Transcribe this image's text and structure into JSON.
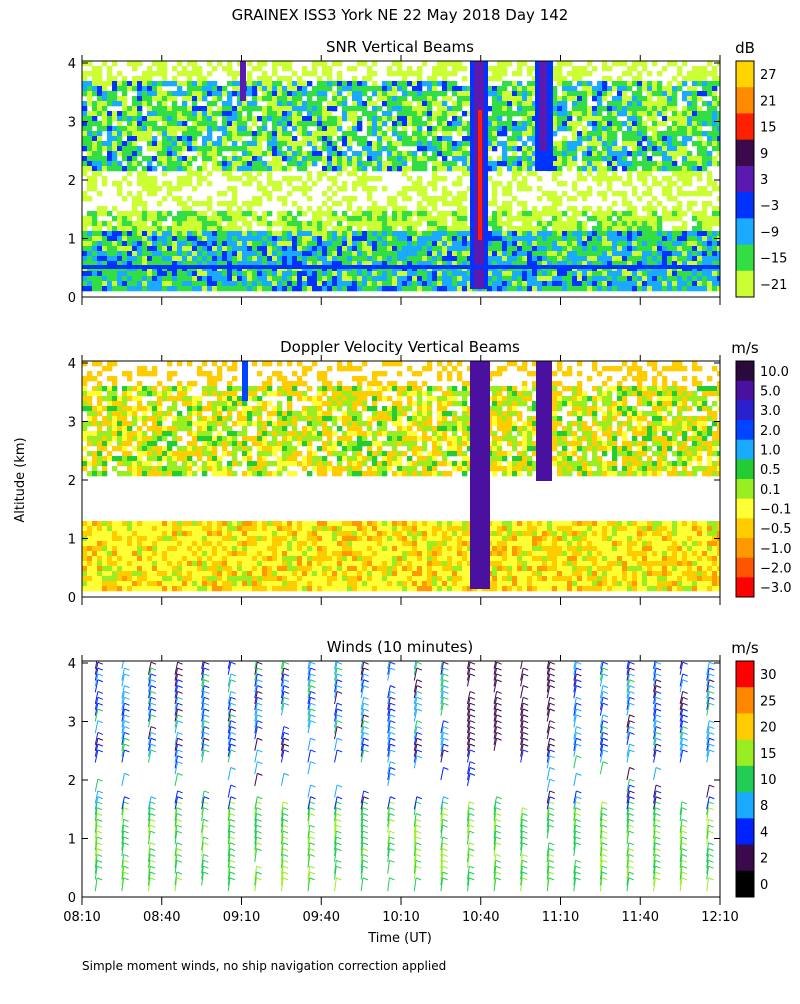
{
  "page": {
    "title": "GRAINEX ISS3 York NE  22 May 2018 Day 142",
    "y_axis_label": "Altitude (km)",
    "x_axis_label": "Time (UT)",
    "footer_note": "Simple moment winds, no ship navigation correction applied"
  },
  "chart_data": [
    {
      "type": "heatmap",
      "title": "SNR Vertical Beams",
      "xlabel": "",
      "ylabel": "",
      "x_ticks": [
        "08:10",
        "08:40",
        "09:10",
        "09:40",
        "10:10",
        "10:40",
        "11:10",
        "11:40",
        "12:10"
      ],
      "y_ticks": [
        "0",
        "1",
        "2",
        "3",
        "4"
      ],
      "ylim": [
        0,
        4
      ],
      "colorbar": {
        "unit": "dB",
        "labels": [
          "27",
          "21",
          "15",
          "9",
          "3",
          "−3",
          "−9",
          "−15",
          "−21"
        ],
        "colors": [
          "#ffd400",
          "#ff8c00",
          "#ff2000",
          "#3a0a4a",
          "#5a1ab0",
          "#0033ff",
          "#1aaaff",
          "#33dd44",
          "#ccff33"
        ]
      }
    },
    {
      "type": "heatmap",
      "title": "Doppler Velocity Vertical Beams",
      "xlabel": "",
      "ylabel": "",
      "x_ticks": [
        "08:10",
        "08:40",
        "09:10",
        "09:40",
        "10:10",
        "10:40",
        "11:10",
        "11:40",
        "12:10"
      ],
      "y_ticks": [
        "0",
        "1",
        "2",
        "3",
        "4"
      ],
      "ylim": [
        0,
        4
      ],
      "colorbar": {
        "unit": "m/s",
        "labels": [
          "10.0",
          "5.0",
          "3.0",
          "2.0",
          "1.0",
          "0.5",
          "0.1",
          "−0.1",
          "−0.5",
          "−1.0",
          "−2.0",
          "−3.0"
        ],
        "colors": [
          "#2a0a3a",
          "#4a10a0",
          "#2a20d0",
          "#0044ff",
          "#1aaaff",
          "#22cc33",
          "#99ee22",
          "#ffff33",
          "#ffcc00",
          "#ff9900",
          "#ff5500",
          "#ff0000"
        ]
      }
    },
    {
      "type": "scatter",
      "title": "Winds (10 minutes)",
      "xlabel": "",
      "ylabel": "",
      "x_ticks": [
        "08:10",
        "08:40",
        "09:10",
        "09:40",
        "10:10",
        "10:40",
        "11:10",
        "11:40",
        "12:10"
      ],
      "y_ticks": [
        "0",
        "1",
        "2",
        "3",
        "4"
      ],
      "ylim": [
        0,
        4
      ],
      "colorbar": {
        "unit": "m/s",
        "labels": [
          "30",
          "25",
          "20",
          "15",
          "10",
          "8",
          "4",
          "2",
          "0"
        ],
        "colors": [
          "#ff0000",
          "#ff8800",
          "#ffcc00",
          "#99ee22",
          "#22cc55",
          "#1aaaff",
          "#0022ff",
          "#3a0a4a",
          "#000000"
        ]
      }
    }
  ]
}
